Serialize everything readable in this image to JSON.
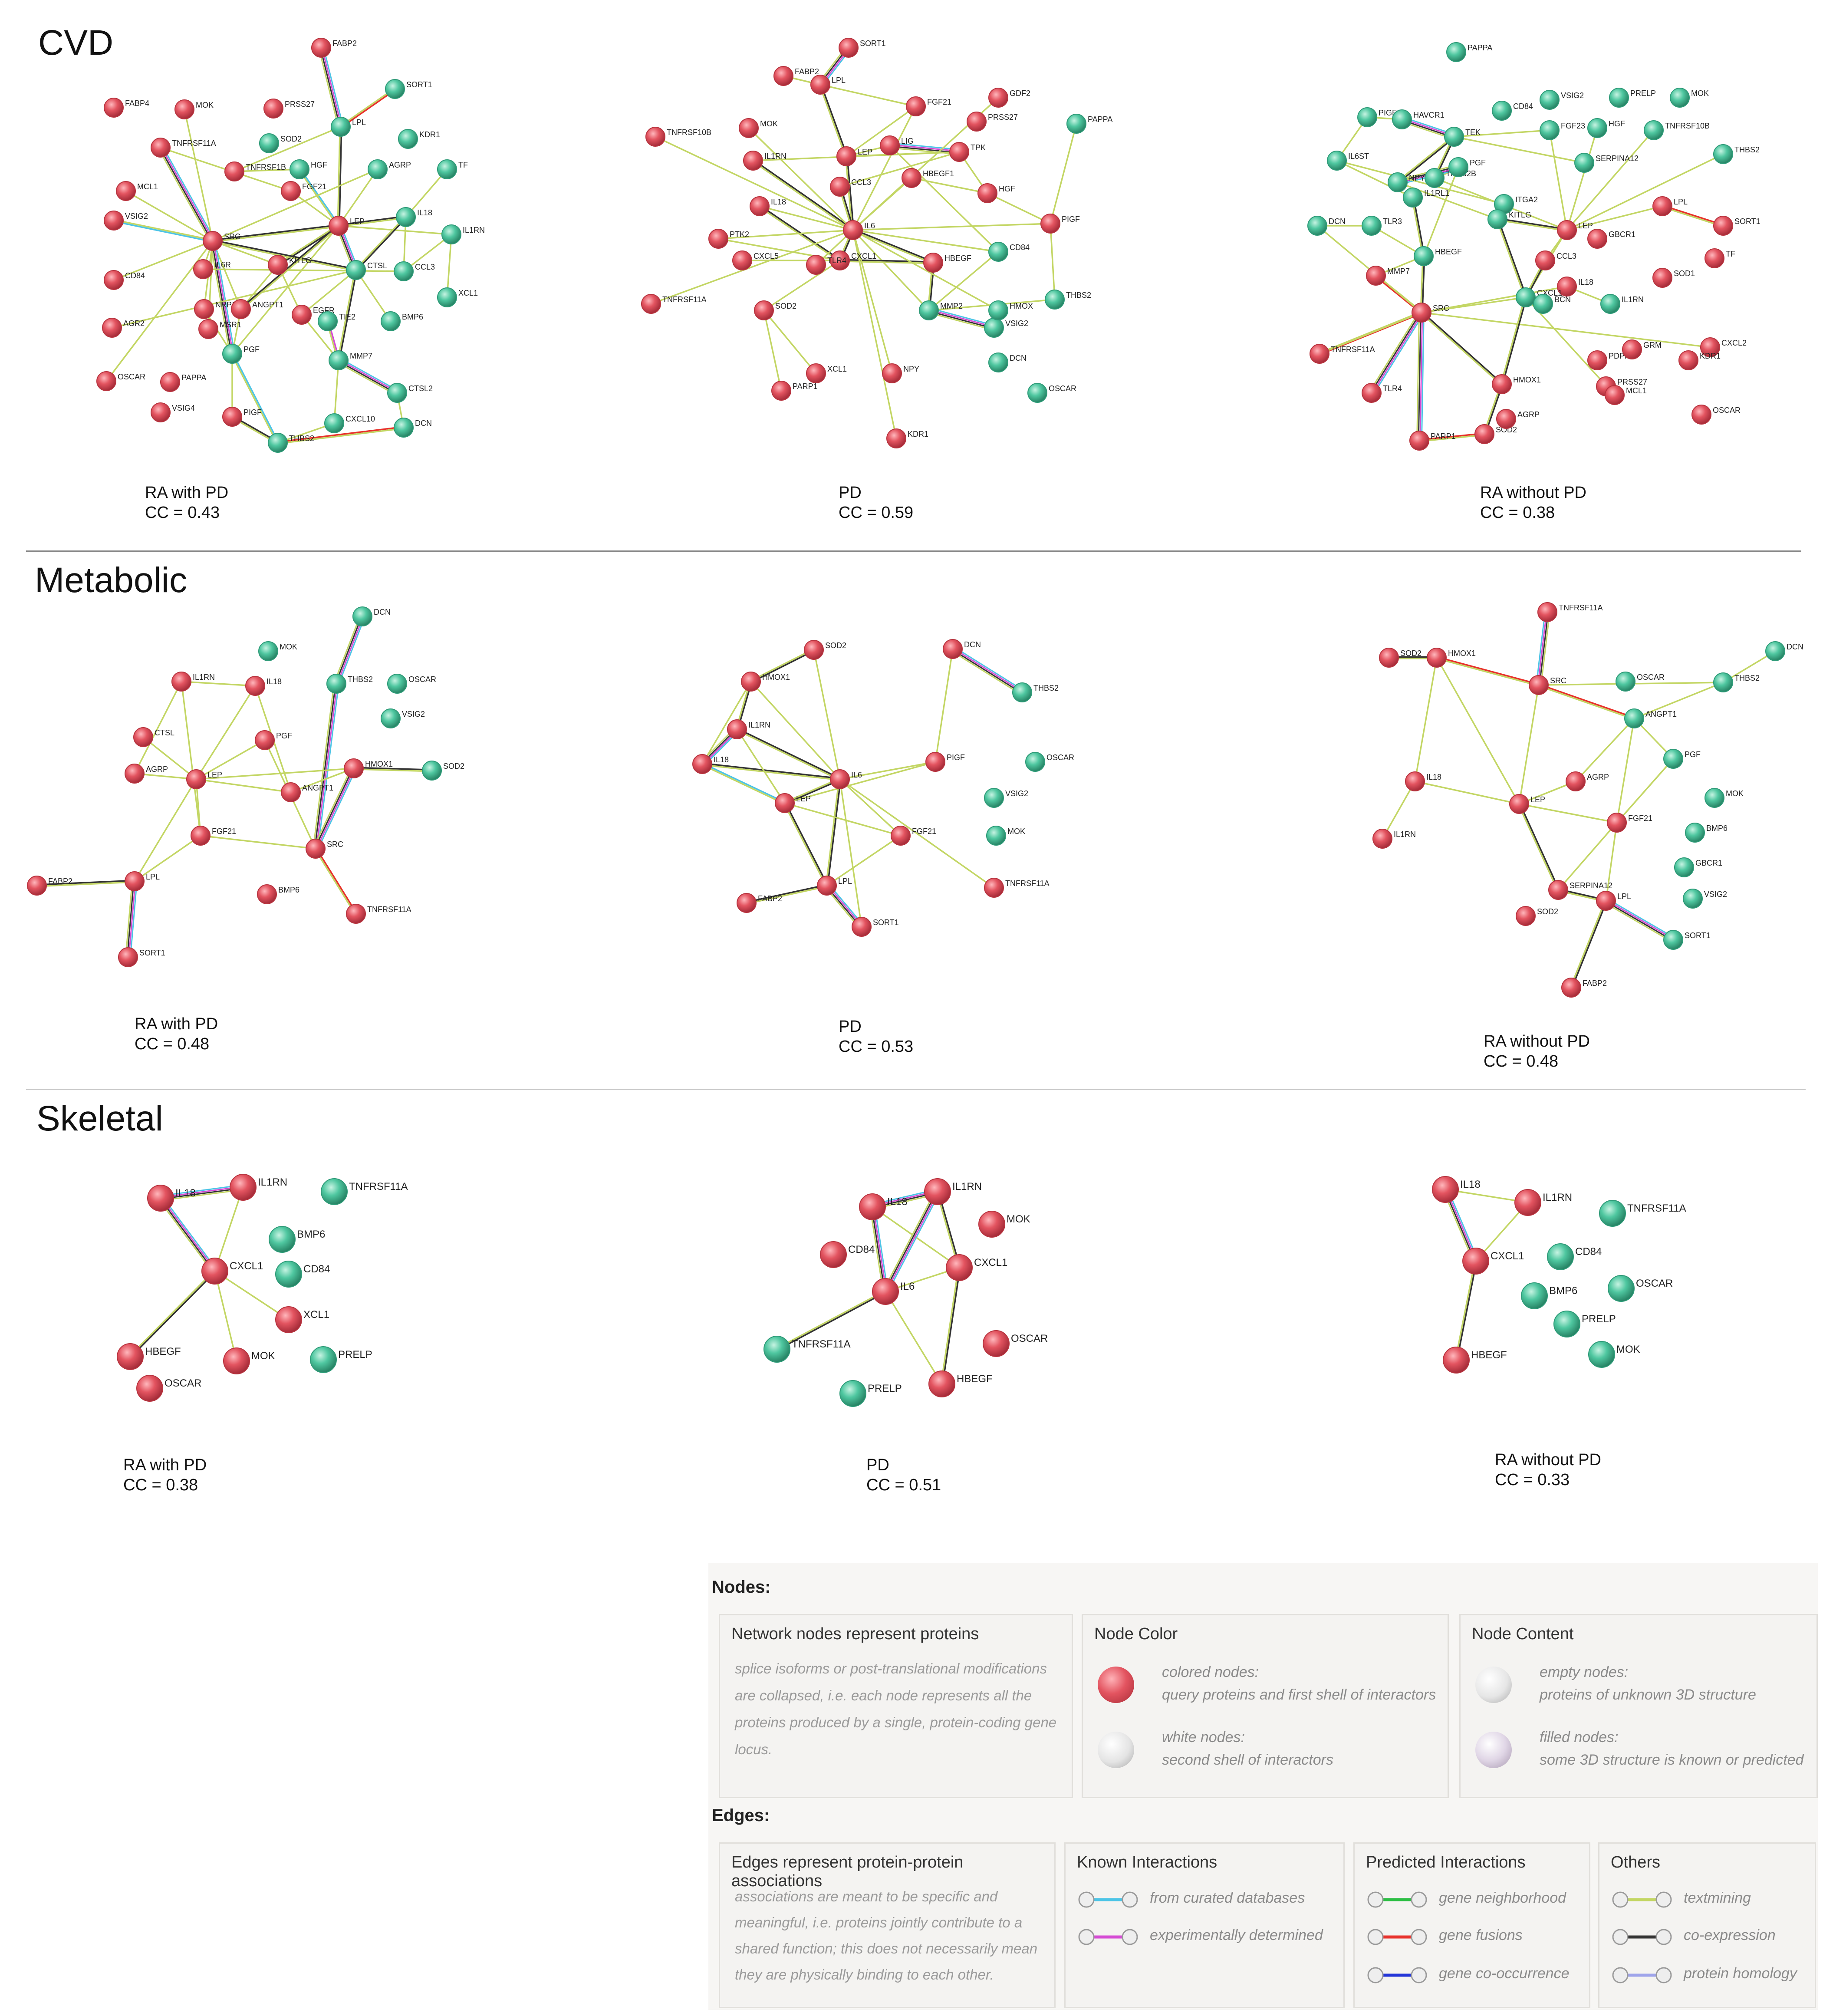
{
  "colors": {
    "query": "#e35460",
    "shell": "#4fc7a0",
    "node_stroke_red": "#b8343f",
    "node_stroke_green": "#2e9b78",
    "textmining": "#c3d664",
    "coexpression": "#333333",
    "curated": "#4dc4e6",
    "experimental": "#d54ad4",
    "neighborhood": "#2dbe45",
    "fusion": "#e8312b",
    "cooccurrence": "#2436d8",
    "homology": "#9fa4ea"
  },
  "sections": [
    {
      "title": "CVD",
      "panels": [
        {
          "caption": "RA with PD",
          "cc": "CC = 0.43",
          "nodes": [
            [
              "FABP2",
              "r"
            ],
            [
              "SORT1",
              "g"
            ],
            [
              "FABP4",
              "r"
            ],
            [
              "MOK",
              "r"
            ],
            [
              "PRSS27",
              "r"
            ],
            [
              "LPL",
              "g"
            ],
            [
              "KDR1",
              "g"
            ],
            [
              "TNFRSF11A",
              "r"
            ],
            [
              "SOD2",
              "g"
            ],
            [
              "TNFRSF1B",
              "r"
            ],
            [
              "HGF",
              "g"
            ],
            [
              "AGRP",
              "g"
            ],
            [
              "TF",
              "g"
            ],
            [
              "MCL1",
              "r"
            ],
            [
              "FGF21",
              "r"
            ],
            [
              "LEP",
              "r"
            ],
            [
              "IL18",
              "g"
            ],
            [
              "IL1RN",
              "g"
            ],
            [
              "VSIG2",
              "r"
            ],
            [
              "SRC",
              "r"
            ],
            [
              "IL6R",
              "r"
            ],
            [
              "KITLG",
              "r"
            ],
            [
              "CTSL",
              "g"
            ],
            [
              "CCL3",
              "g"
            ],
            [
              "XCL1",
              "g"
            ],
            [
              "CD84",
              "r"
            ],
            [
              "NRP1",
              "r"
            ],
            [
              "ANGPT1",
              "r"
            ],
            [
              "EGFR",
              "r"
            ],
            [
              "TIE2",
              "g"
            ],
            [
              "BMP6",
              "g"
            ],
            [
              "MSR1",
              "r"
            ],
            [
              "AGR2",
              "r"
            ],
            [
              "PGF",
              "g"
            ],
            [
              "MMP7",
              "g"
            ],
            [
              "CTSL2",
              "g"
            ],
            [
              "OSCAR",
              "r"
            ],
            [
              "PAPPA",
              "r"
            ],
            [
              "CXCL10",
              "g"
            ],
            [
              "VSIG4",
              "r"
            ],
            [
              "PIGF",
              "r"
            ],
            [
              "THBS2",
              "g"
            ],
            [
              "DCN",
              "g"
            ]
          ]
        },
        {
          "caption": "PD",
          "cc": "CC = 0.59",
          "nodes": [
            [
              "SORT1",
              "r"
            ],
            [
              "FABP2",
              "r"
            ],
            [
              "LPL",
              "r"
            ],
            [
              "FGF21",
              "r"
            ],
            [
              "GDF2",
              "r"
            ],
            [
              "TNFRSF10B",
              "r"
            ],
            [
              "MOK",
              "r"
            ],
            [
              "PRSS27",
              "r"
            ],
            [
              "PAPPA",
              "g"
            ],
            [
              "IL1RN",
              "r"
            ],
            [
              "LEP",
              "r"
            ],
            [
              "LIG",
              "r"
            ],
            [
              "TPK",
              "r"
            ],
            [
              "HBEGF1",
              "r"
            ],
            [
              "CCL3",
              "r"
            ],
            [
              "IL18",
              "r"
            ],
            [
              "IL6",
              "r"
            ],
            [
              "HGF",
              "r"
            ],
            [
              "PTK2",
              "r"
            ],
            [
              "CXCL1",
              "r"
            ],
            [
              "PIGF",
              "r"
            ],
            [
              "HBEGF",
              "r"
            ],
            [
              "CD84",
              "g"
            ],
            [
              "TNFRSF11A",
              "r"
            ],
            [
              "MMP2",
              "g"
            ],
            [
              "VSIG2",
              "g"
            ],
            [
              "THBS2",
              "g"
            ],
            [
              "SOD2",
              "r"
            ],
            [
              "DCN",
              "g"
            ],
            [
              "HMOX",
              "g"
            ],
            [
              "XCL1",
              "r"
            ],
            [
              "NPY",
              "r"
            ],
            [
              "OSCAR",
              "g"
            ],
            [
              "PARP1",
              "r"
            ],
            [
              "KDR1",
              "r"
            ],
            [
              "CXCL5",
              "r"
            ],
            [
              "TLR4",
              "r"
            ]
          ]
        },
        {
          "caption": "RA without PD",
          "cc": "CC = 0.38",
          "nodes": [
            [
              "PAPPA",
              "g"
            ],
            [
              "CD84",
              "g"
            ],
            [
              "VSIG2",
              "g"
            ],
            [
              "PRELP",
              "g"
            ],
            [
              "MOK",
              "g"
            ],
            [
              "PIGF",
              "g"
            ],
            [
              "HAVCR1",
              "g"
            ],
            [
              "TEK",
              "g"
            ],
            [
              "FGF23",
              "g"
            ],
            [
              "HGF",
              "g"
            ],
            [
              "TNFRSF10B",
              "g"
            ],
            [
              "THBS2",
              "g"
            ],
            [
              "IL6ST",
              "g"
            ],
            [
              "SERPINA12",
              "g"
            ],
            [
              "THBS2B",
              "g"
            ],
            [
              "PGF",
              "g"
            ],
            [
              "NPY",
              "g"
            ],
            [
              "IL1RL1",
              "g"
            ],
            [
              "ITGA2",
              "g"
            ],
            [
              "DCN",
              "g"
            ],
            [
              "TLR3",
              "g"
            ],
            [
              "KITLG",
              "g"
            ],
            [
              "LEP",
              "r"
            ],
            [
              "LPL",
              "r"
            ],
            [
              "SORT1",
              "r"
            ],
            [
              "HBEGF",
              "g"
            ],
            [
              "GBCR1",
              "r"
            ],
            [
              "TF",
              "r"
            ],
            [
              "SOD1",
              "r"
            ],
            [
              "MMP7",
              "r"
            ],
            [
              "CCL3",
              "r"
            ],
            [
              "IL18",
              "r"
            ],
            [
              "CXCL1",
              "g"
            ],
            [
              "BCN",
              "g"
            ],
            [
              "IL1RN",
              "g"
            ],
            [
              "SRC",
              "r"
            ],
            [
              "TNFRSF11A",
              "r"
            ],
            [
              "PDPN",
              "r"
            ],
            [
              "GRM",
              "r"
            ],
            [
              "CXCL2",
              "r"
            ],
            [
              "TLR4",
              "r"
            ],
            [
              "HMOX1",
              "r"
            ],
            [
              "PRSS27",
              "r"
            ],
            [
              "KDR1",
              "r"
            ],
            [
              "MCL1",
              "r"
            ],
            [
              "OSCAR",
              "r"
            ],
            [
              "PARP1",
              "r"
            ],
            [
              "SOD2",
              "r"
            ],
            [
              "AGRP",
              "r"
            ]
          ]
        }
      ]
    },
    {
      "title": "Metabolic",
      "panels": [
        {
          "caption": "RA with PD",
          "cc": "CC = 0.48",
          "nodes": [
            [
              "DCN",
              "g"
            ],
            [
              "MOK",
              "g"
            ],
            [
              "IL1RN",
              "r"
            ],
            [
              "IL18",
              "r"
            ],
            [
              "THBS2",
              "g"
            ],
            [
              "OSCAR",
              "g"
            ],
            [
              "VSIG2",
              "g"
            ],
            [
              "CTSL",
              "r"
            ],
            [
              "AGRP",
              "r"
            ],
            [
              "LEP",
              "r"
            ],
            [
              "PGF",
              "r"
            ],
            [
              "ANGPT1",
              "r"
            ],
            [
              "HMOX1",
              "r"
            ],
            [
              "SOD2",
              "g"
            ],
            [
              "FGF21",
              "r"
            ],
            [
              "SRC",
              "r"
            ],
            [
              "FABP2",
              "r"
            ],
            [
              "LPL",
              "r"
            ],
            [
              "BMP6",
              "r"
            ],
            [
              "TNFRSF11A",
              "r"
            ],
            [
              "SORT1",
              "r"
            ]
          ]
        },
        {
          "caption": "PD",
          "cc": "CC = 0.53",
          "nodes": [
            [
              "SOD2",
              "r"
            ],
            [
              "DCN",
              "r"
            ],
            [
              "HMOX1",
              "r"
            ],
            [
              "THBS2",
              "g"
            ],
            [
              "IL1RN",
              "r"
            ],
            [
              "IL18",
              "r"
            ],
            [
              "IL6",
              "r"
            ],
            [
              "PIGF",
              "r"
            ],
            [
              "OSCAR",
              "g"
            ],
            [
              "LEP",
              "r"
            ],
            [
              "VSIG2",
              "g"
            ],
            [
              "MOK",
              "g"
            ],
            [
              "FGF21",
              "r"
            ],
            [
              "FABP2",
              "r"
            ],
            [
              "LPL",
              "r"
            ],
            [
              "TNFRSF11A",
              "r"
            ],
            [
              "SORT1",
              "r"
            ]
          ]
        },
        {
          "caption": "RA without PD",
          "cc": "CC = 0.48",
          "nodes": [
            [
              "TNFRSF11A",
              "r"
            ],
            [
              "SOD2",
              "r"
            ],
            [
              "HMOX1",
              "r"
            ],
            [
              "SRC",
              "r"
            ],
            [
              "OSCAR",
              "g"
            ],
            [
              "DCN",
              "g"
            ],
            [
              "THBS2",
              "g"
            ],
            [
              "ANGPT1",
              "g"
            ],
            [
              "PGF",
              "g"
            ],
            [
              "AGRP",
              "r"
            ],
            [
              "IL18",
              "r"
            ],
            [
              "LEP",
              "r"
            ],
            [
              "MOK",
              "g"
            ],
            [
              "FGF21",
              "r"
            ],
            [
              "BMP6",
              "g"
            ],
            [
              "IL1RN",
              "r"
            ],
            [
              "GBCR1",
              "g"
            ],
            [
              "VSIG2",
              "g"
            ],
            [
              "SERPINA12",
              "r"
            ],
            [
              "LPL",
              "r"
            ],
            [
              "SOD2",
              "r"
            ],
            [
              "SORT1",
              "g"
            ],
            [
              "FABP2",
              "r"
            ]
          ]
        }
      ]
    },
    {
      "title": "Skeletal",
      "panels": [
        {
          "caption": "RA with PD",
          "cc": "CC = 0.38",
          "nodes": [
            [
              "IL18",
              "r"
            ],
            [
              "IL1RN",
              "r"
            ],
            [
              "TNFRSF11A",
              "g"
            ],
            [
              "BMP6",
              "g"
            ],
            [
              "CXCL1",
              "r"
            ],
            [
              "CD84",
              "g"
            ],
            [
              "XCL1",
              "r"
            ],
            [
              "HBEGF",
              "r"
            ],
            [
              "MOK",
              "r"
            ],
            [
              "PRELP",
              "g"
            ],
            [
              "OSCAR",
              "r"
            ]
          ]
        },
        {
          "caption": "PD",
          "cc": "CC = 0.51",
          "nodes": [
            [
              "IL18",
              "r"
            ],
            [
              "IL1RN",
              "r"
            ],
            [
              "MOK",
              "r"
            ],
            [
              "CD84",
              "r"
            ],
            [
              "IL6",
              "r"
            ],
            [
              "CXCL1",
              "r"
            ],
            [
              "OSCAR",
              "r"
            ],
            [
              "TNFRSF11A",
              "g"
            ],
            [
              "PRELP",
              "g"
            ],
            [
              "HBEGF",
              "r"
            ]
          ]
        },
        {
          "caption": "RA without PD",
          "cc": "CC = 0.33",
          "nodes": [
            [
              "IL18",
              "r"
            ],
            [
              "IL1RN",
              "r"
            ],
            [
              "TNFRSF11A",
              "g"
            ],
            [
              "CXCL1",
              "r"
            ],
            [
              "CD84",
              "g"
            ],
            [
              "OSCAR",
              "g"
            ],
            [
              "BMP6",
              "g"
            ],
            [
              "PRELP",
              "g"
            ],
            [
              "MOK",
              "g"
            ],
            [
              "HBEGF",
              "r"
            ]
          ]
        }
      ]
    }
  ],
  "legend": {
    "nodes_heading": "Nodes:",
    "edges_heading": "Edges:",
    "node_boxes": [
      {
        "title": "Network nodes represent proteins",
        "desc": "splice isoforms or post-translational modifications are collapsed, i.e. each node represents all the proteins produced by a single, protein-coding gene locus."
      },
      {
        "title": "Node Color",
        "items": [
          {
            "line1": "colored nodes:",
            "line2": "query proteins and first shell of interactors"
          },
          {
            "line1": "white nodes:",
            "line2": "second shell of interactors"
          }
        ]
      },
      {
        "title": "Node Content",
        "items": [
          {
            "line1": "empty nodes:",
            "line2": "proteins of unknown 3D structure"
          },
          {
            "line1": "filled nodes:",
            "line2": "some 3D structure is known or predicted"
          }
        ]
      }
    ],
    "edge_boxes": [
      {
        "title": "Edges represent protein-protein associations",
        "desc": "associations are meant to be specific and meaningful, i.e. proteins jointly contribute to a shared function; this does not necessarily mean they are physically binding to each other."
      },
      {
        "title": "Known Interactions",
        "items": [
          {
            "label": "from curated databases",
            "color": "#4dc4e6"
          },
          {
            "label": "experimentally determined",
            "color": "#d54ad4"
          }
        ]
      },
      {
        "title": "Predicted Interactions",
        "items": [
          {
            "label": "gene neighborhood",
            "color": "#2dbe45"
          },
          {
            "label": "gene fusions",
            "color": "#e8312b"
          },
          {
            "label": "gene co-occurrence",
            "color": "#2436d8"
          }
        ]
      },
      {
        "title": "Others",
        "items": [
          {
            "label": "textmining",
            "color": "#c3d664"
          },
          {
            "label": "co-expression",
            "color": "#333333"
          },
          {
            "label": "protein homology",
            "color": "#9fa4ea"
          }
        ]
      }
    ]
  }
}
